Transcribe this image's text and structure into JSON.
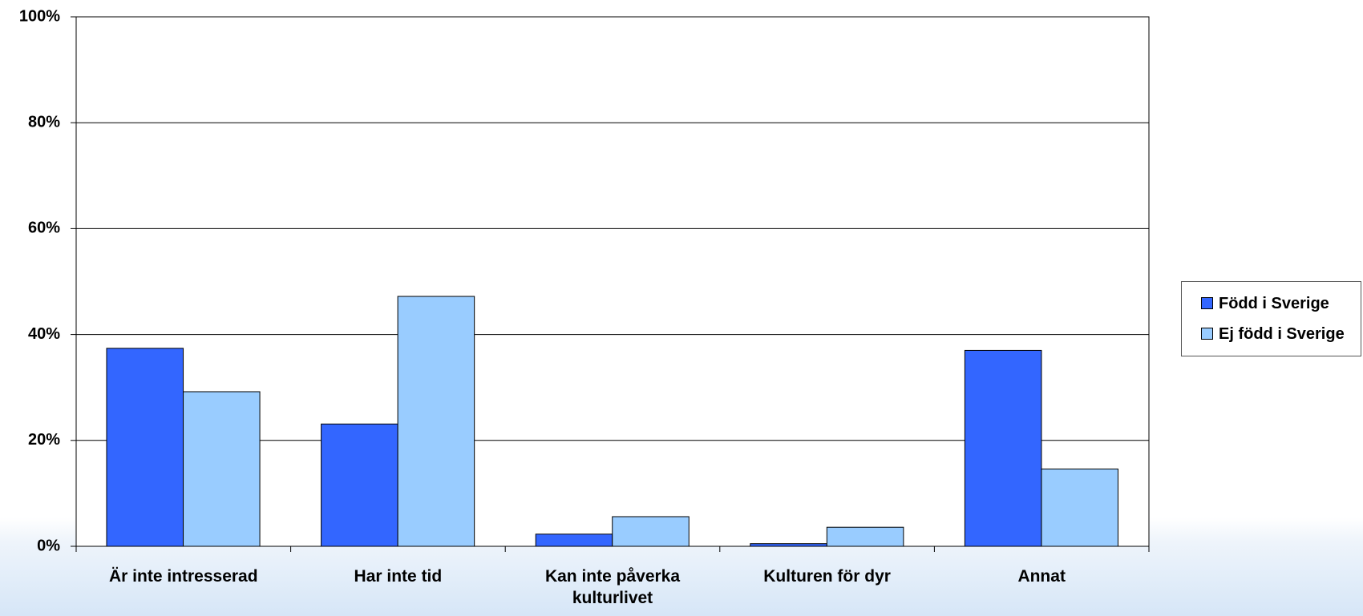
{
  "chart_data": {
    "type": "bar",
    "categories": [
      "Är inte intresserad",
      "Har inte tid",
      "Kan inte påverka kulturlivet",
      "Kulturen för dyr",
      "Annat"
    ],
    "series": [
      {
        "name": "Född i Sverige",
        "color": "#3366ff",
        "values": [
          37.4,
          23.1,
          2.3,
          0.5,
          37.0
        ]
      },
      {
        "name": "Ej född i Sverige",
        "color": "#99ccff",
        "values": [
          29.2,
          47.2,
          5.6,
          3.6,
          14.6
        ]
      }
    ],
    "ylim": [
      0,
      100
    ],
    "yticks": [
      {
        "value": 0,
        "label": "0%"
      },
      {
        "value": 20,
        "label": "20%"
      },
      {
        "value": 40,
        "label": "40%"
      },
      {
        "value": 60,
        "label": "60%"
      },
      {
        "value": 80,
        "label": "80%"
      },
      {
        "value": 100,
        "label": "100%"
      }
    ],
    "grid": true,
    "legend": "right"
  }
}
